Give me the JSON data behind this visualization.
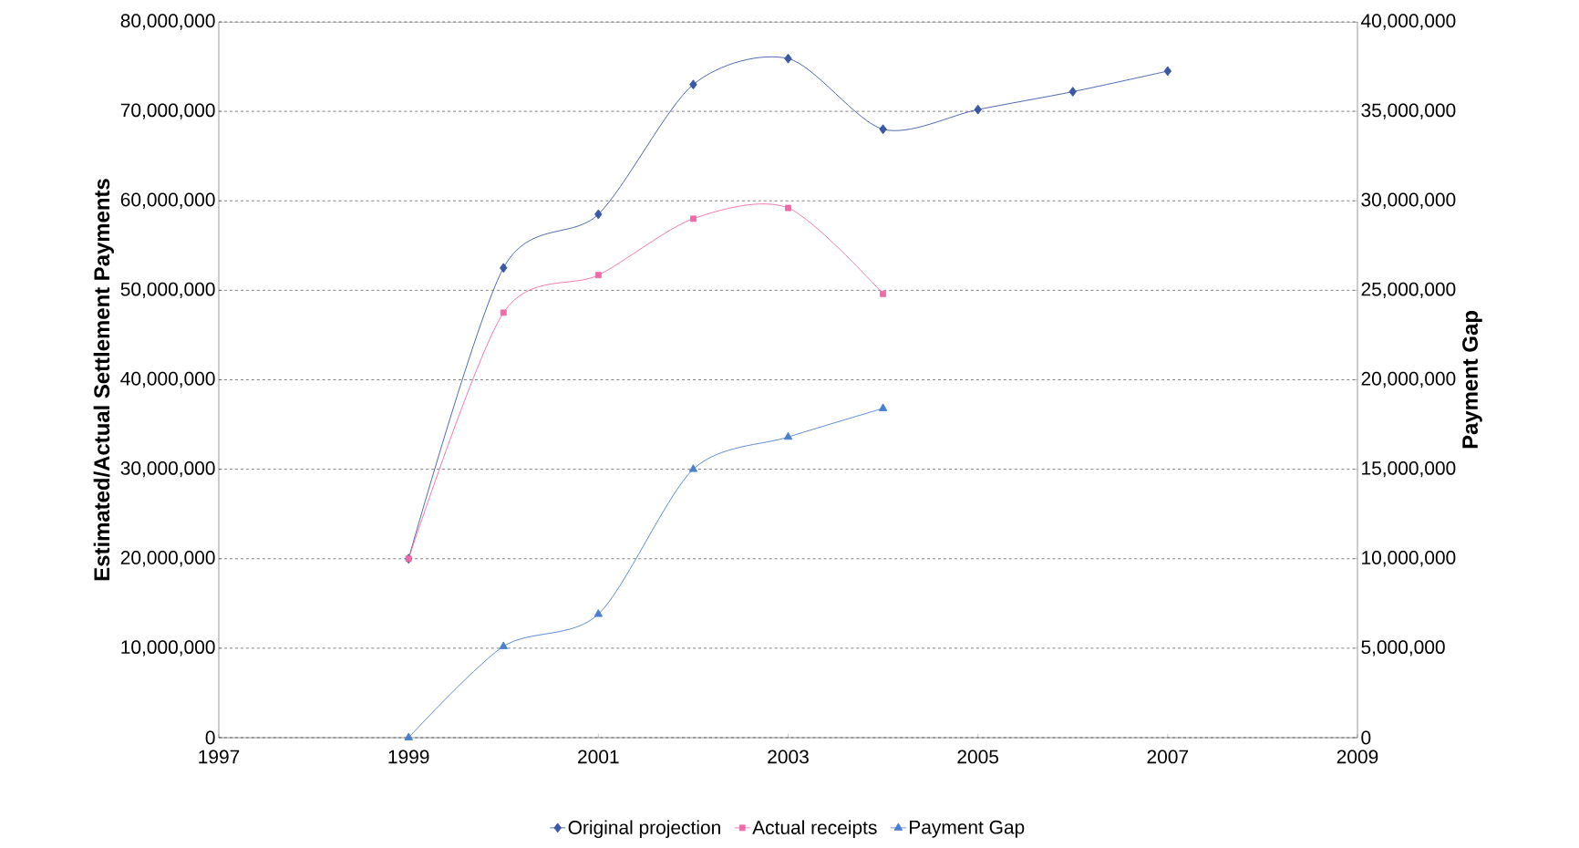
{
  "chart_data": {
    "type": "line",
    "ylabel": "Estimated/Actual Settlement Payments",
    "y2label": "Payment Gap",
    "series": [
      {
        "name": "Original projection",
        "color": "#3a57a8",
        "marker": "diamond",
        "x": [
          1999,
          2000,
          2001,
          2002,
          2003,
          2004,
          2005,
          2006,
          2007
        ],
        "values": [
          20000000,
          52500000,
          58500000,
          73000000,
          75900000,
          68000000,
          70200000,
          72200000,
          74500000
        ]
      },
      {
        "name": "Actual receipts",
        "color": "#f06aa8",
        "marker": "square",
        "x": [
          1999,
          2000,
          2001,
          2002,
          2003,
          2004
        ],
        "values": [
          20000000,
          47500000,
          51700000,
          58000000,
          59200000,
          49600000
        ]
      },
      {
        "name": "Payment Gap",
        "color": "#4a7fd0",
        "marker": "triangle",
        "axis": "y2",
        "x": [
          1999,
          2000,
          2001,
          2002,
          2003,
          2004
        ],
        "values": [
          0,
          5100000,
          6900000,
          15000000,
          16800000,
          18400000
        ]
      }
    ],
    "xlim": [
      1997,
      2009
    ],
    "xticks": [
      1997,
      1999,
      2001,
      2003,
      2005,
      2007,
      2009
    ],
    "ylim": [
      0,
      80000000
    ],
    "yticks": [
      {
        "value": 0,
        "label": "0"
      },
      {
        "value": 10000000,
        "label": "10,000,000"
      },
      {
        "value": 20000000,
        "label": "20,000,000"
      },
      {
        "value": 30000000,
        "label": "30,000,000"
      },
      {
        "value": 40000000,
        "label": "40,000,000"
      },
      {
        "value": 50000000,
        "label": "50,000,000"
      },
      {
        "value": 60000000,
        "label": "60,000,000"
      },
      {
        "value": 70000000,
        "label": "70,000,000"
      },
      {
        "value": 80000000,
        "label": "80,000,000"
      }
    ],
    "y2lim": [
      0,
      40000000
    ],
    "y2ticks": [
      {
        "value": 0,
        "label": "0"
      },
      {
        "value": 5000000,
        "label": "5,000,000"
      },
      {
        "value": 10000000,
        "label": "10,000,000"
      },
      {
        "value": 15000000,
        "label": "15,000,000"
      },
      {
        "value": 20000000,
        "label": "20,000,000"
      },
      {
        "value": 25000000,
        "label": "25,000,000"
      },
      {
        "value": 30000000,
        "label": "30,000,000"
      },
      {
        "value": 35000000,
        "label": "35,000,000"
      },
      {
        "value": 40000000,
        "label": "40,000,000"
      }
    ],
    "grid": "y",
    "legend": "bottom",
    "line_style": "solid"
  }
}
